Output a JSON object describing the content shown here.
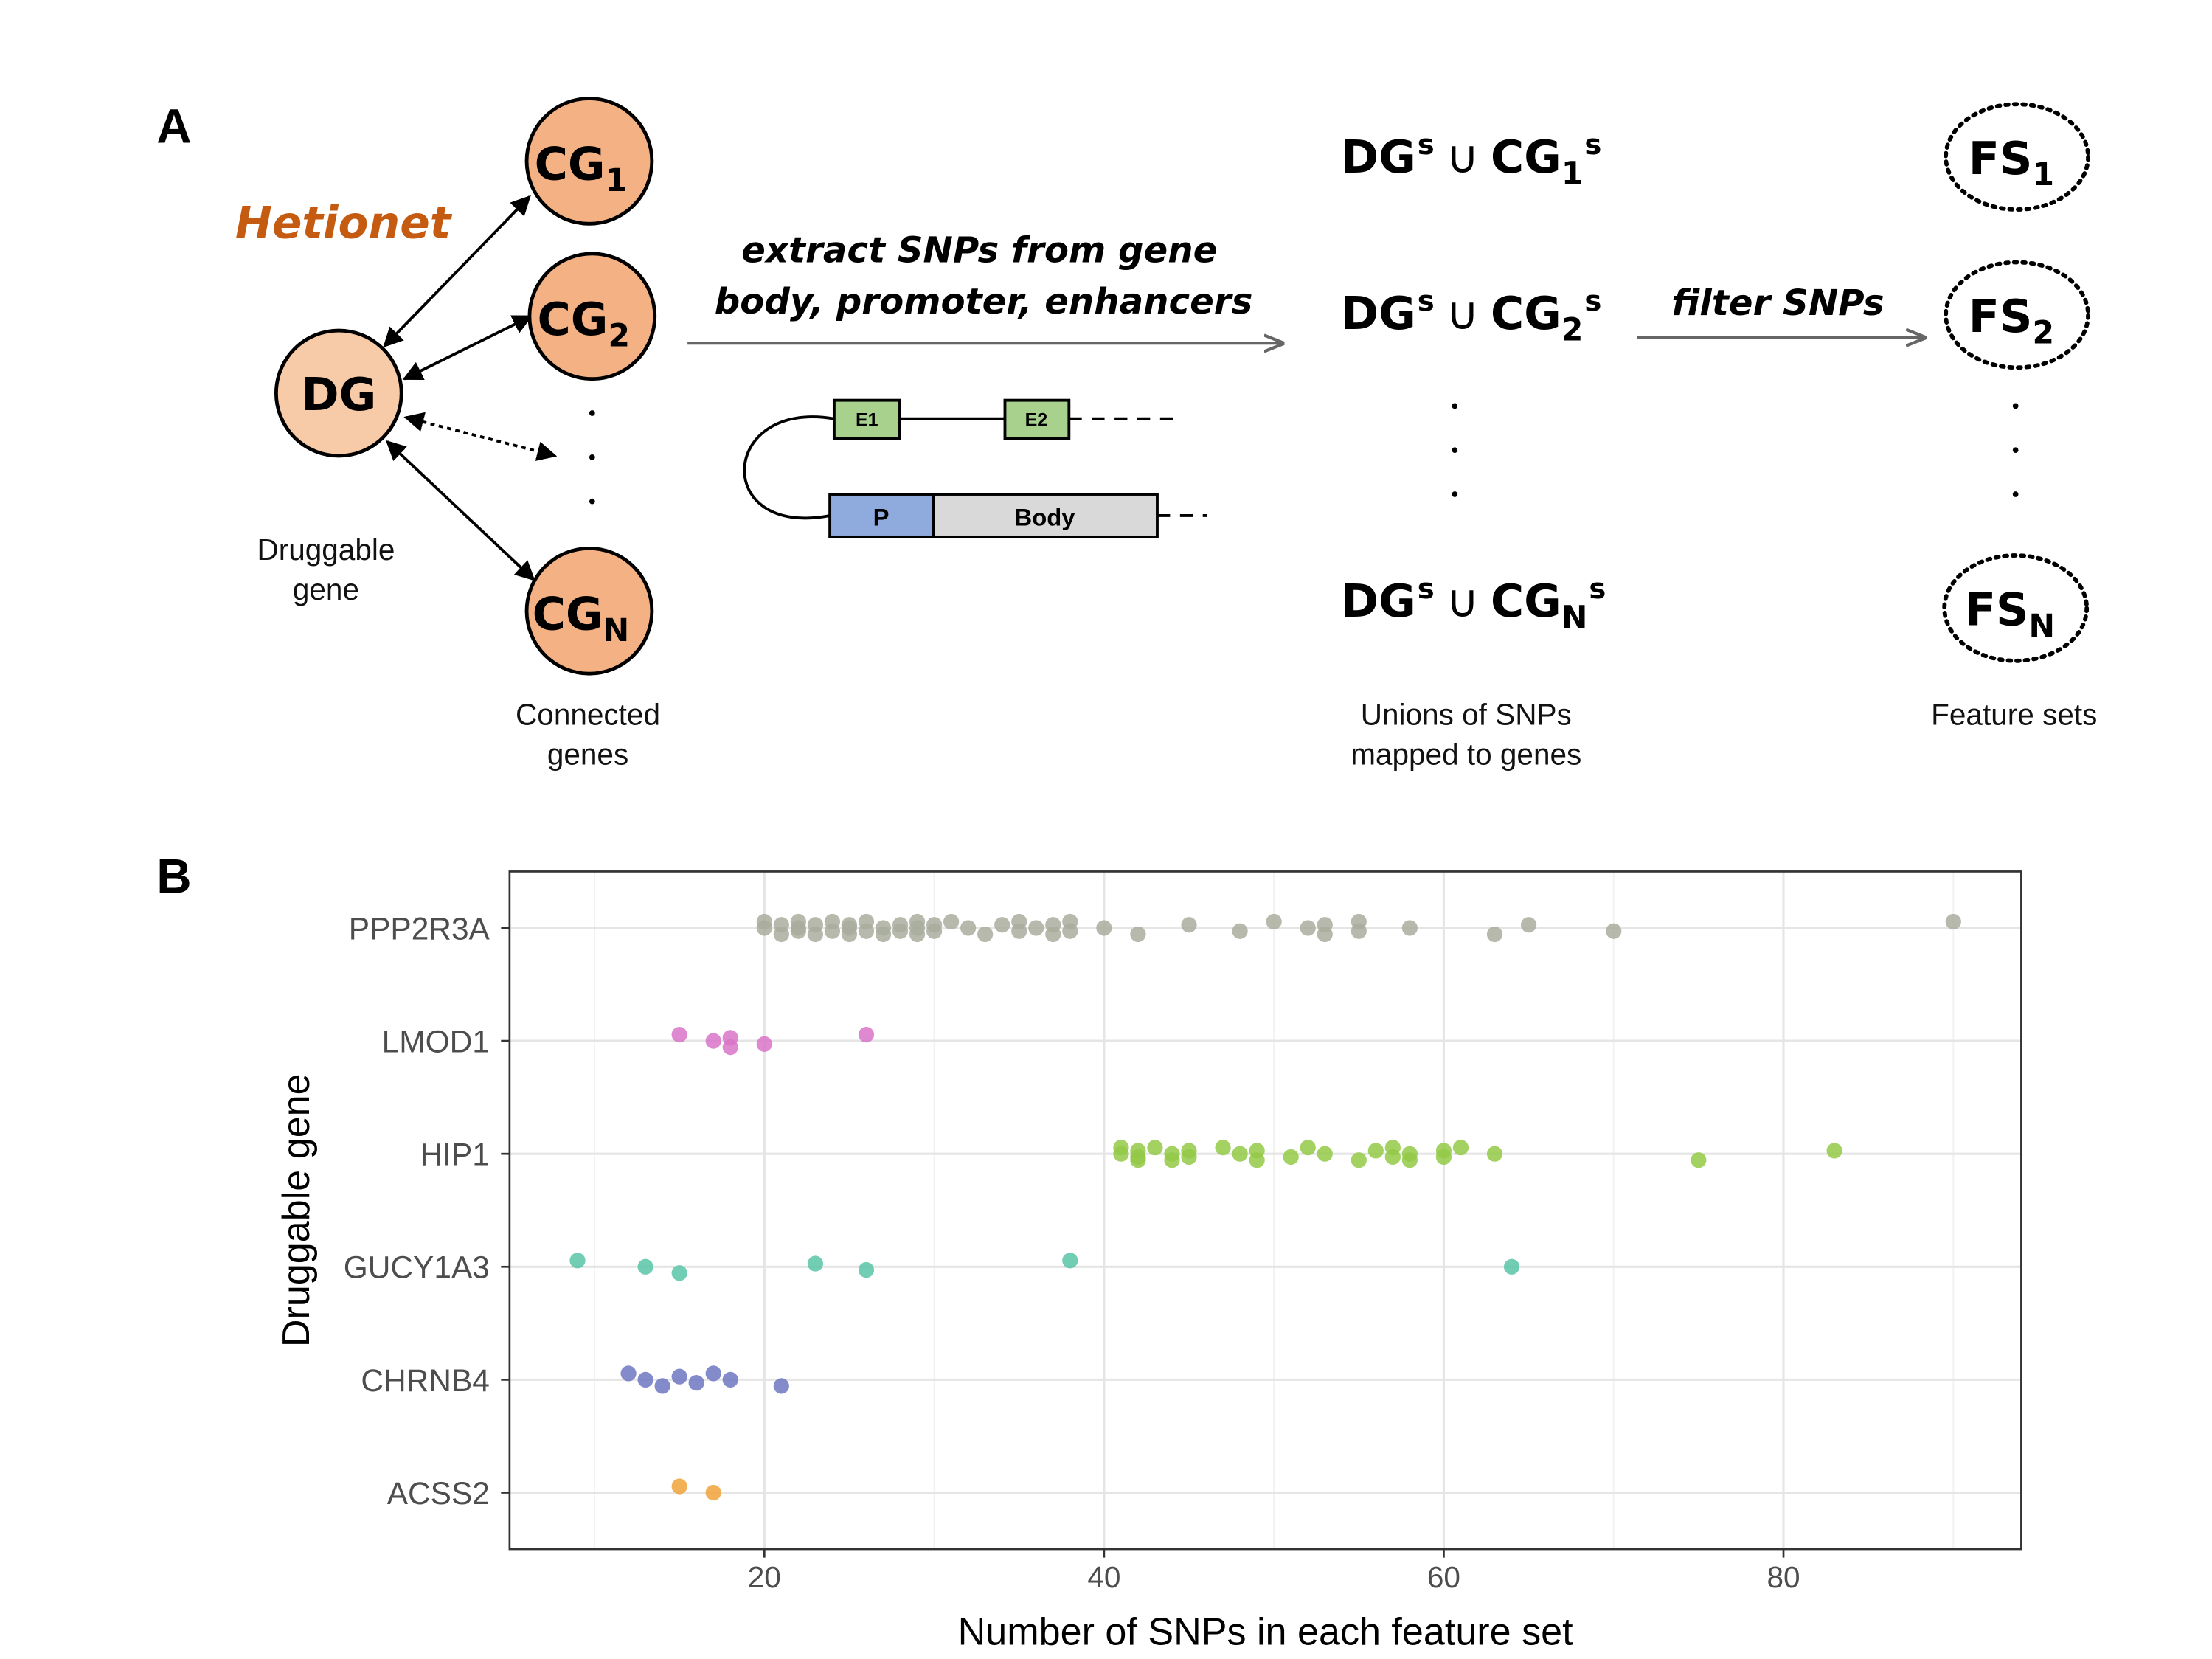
{
  "panel_a": {
    "label": "A",
    "network": "Hetionet",
    "dg": "DG",
    "cg1": {
      "main": "CG",
      "sub": "1"
    },
    "cg2": {
      "main": "CG",
      "sub": "2"
    },
    "cgn": {
      "main": "CG",
      "sub": "N"
    },
    "dg_caption": [
      "Druggable",
      "gene"
    ],
    "cg_caption": [
      "Connected",
      "genes"
    ],
    "extract": [
      "extract SNPs from gene",
      "body, promoter, enhancers"
    ],
    "e1": "E1",
    "e2": "E2",
    "promoter": "P",
    "body": "Body",
    "unions": [
      {
        "dg": "DG",
        "sup1": "s",
        "op": "∪",
        "cg": "CG",
        "sub": "1",
        "sup2": "s"
      },
      {
        "dg": "DG",
        "sup1": "s",
        "op": "∪",
        "cg": "CG",
        "sub": "2",
        "sup2": "s"
      },
      {
        "dg": "DG",
        "sup1": "s",
        "op": "∪",
        "cg": "CG",
        "sub": "N",
        "sup2": "s"
      }
    ],
    "filter": "filter SNPs",
    "feature_sets": [
      {
        "main": "FS",
        "sub": "1"
      },
      {
        "main": "FS",
        "sub": "2"
      },
      {
        "main": "FS",
        "sub": "N"
      }
    ],
    "union_caption": [
      "Unions of SNPs",
      "mapped to genes"
    ],
    "fs_caption": [
      "Feature sets"
    ]
  },
  "panel_b_label": "B",
  "chart_data": {
    "type": "strip",
    "x_label": "Number of SNPs in each feature set",
    "y_label": "Druggable gene",
    "xlim": [
      5,
      94
    ],
    "xticks": [
      20,
      40,
      60,
      80
    ],
    "minor_xticks": [
      10,
      30,
      50,
      70,
      90
    ],
    "grid": true,
    "series": [
      {
        "name": "PPP2R3A",
        "color": "#a9ad9c",
        "values": [
          20,
          20,
          21,
          21,
          22,
          22,
          22,
          23,
          23,
          24,
          24,
          25,
          25,
          25,
          26,
          26,
          27,
          27,
          28,
          28,
          29,
          29,
          29,
          30,
          30,
          31,
          32,
          33,
          34,
          35,
          35,
          36,
          37,
          37,
          38,
          38,
          40,
          42,
          45,
          48,
          50,
          52,
          53,
          53,
          55,
          55,
          58,
          63,
          65,
          70,
          90
        ]
      },
      {
        "name": "LMOD1",
        "color": "#d874c8",
        "values": [
          15,
          17,
          18,
          18,
          20,
          26
        ]
      },
      {
        "name": "HIP1",
        "color": "#93c947",
        "values": [
          41,
          41,
          42,
          42,
          42,
          43,
          44,
          44,
          45,
          45,
          47,
          48,
          49,
          49,
          51,
          52,
          53,
          55,
          56,
          57,
          57,
          58,
          58,
          60,
          60,
          61,
          63,
          75,
          83
        ]
      },
      {
        "name": "GUCY1A3",
        "color": "#59c4a8",
        "values": [
          9,
          13,
          15,
          23,
          26,
          38,
          64
        ]
      },
      {
        "name": "CHRNB4",
        "color": "#6e77c2",
        "values": [
          12,
          13,
          14,
          15,
          16,
          17,
          18,
          21
        ]
      },
      {
        "name": "ACSS2",
        "color": "#f0a23a",
        "values": [
          15,
          17
        ]
      }
    ]
  }
}
